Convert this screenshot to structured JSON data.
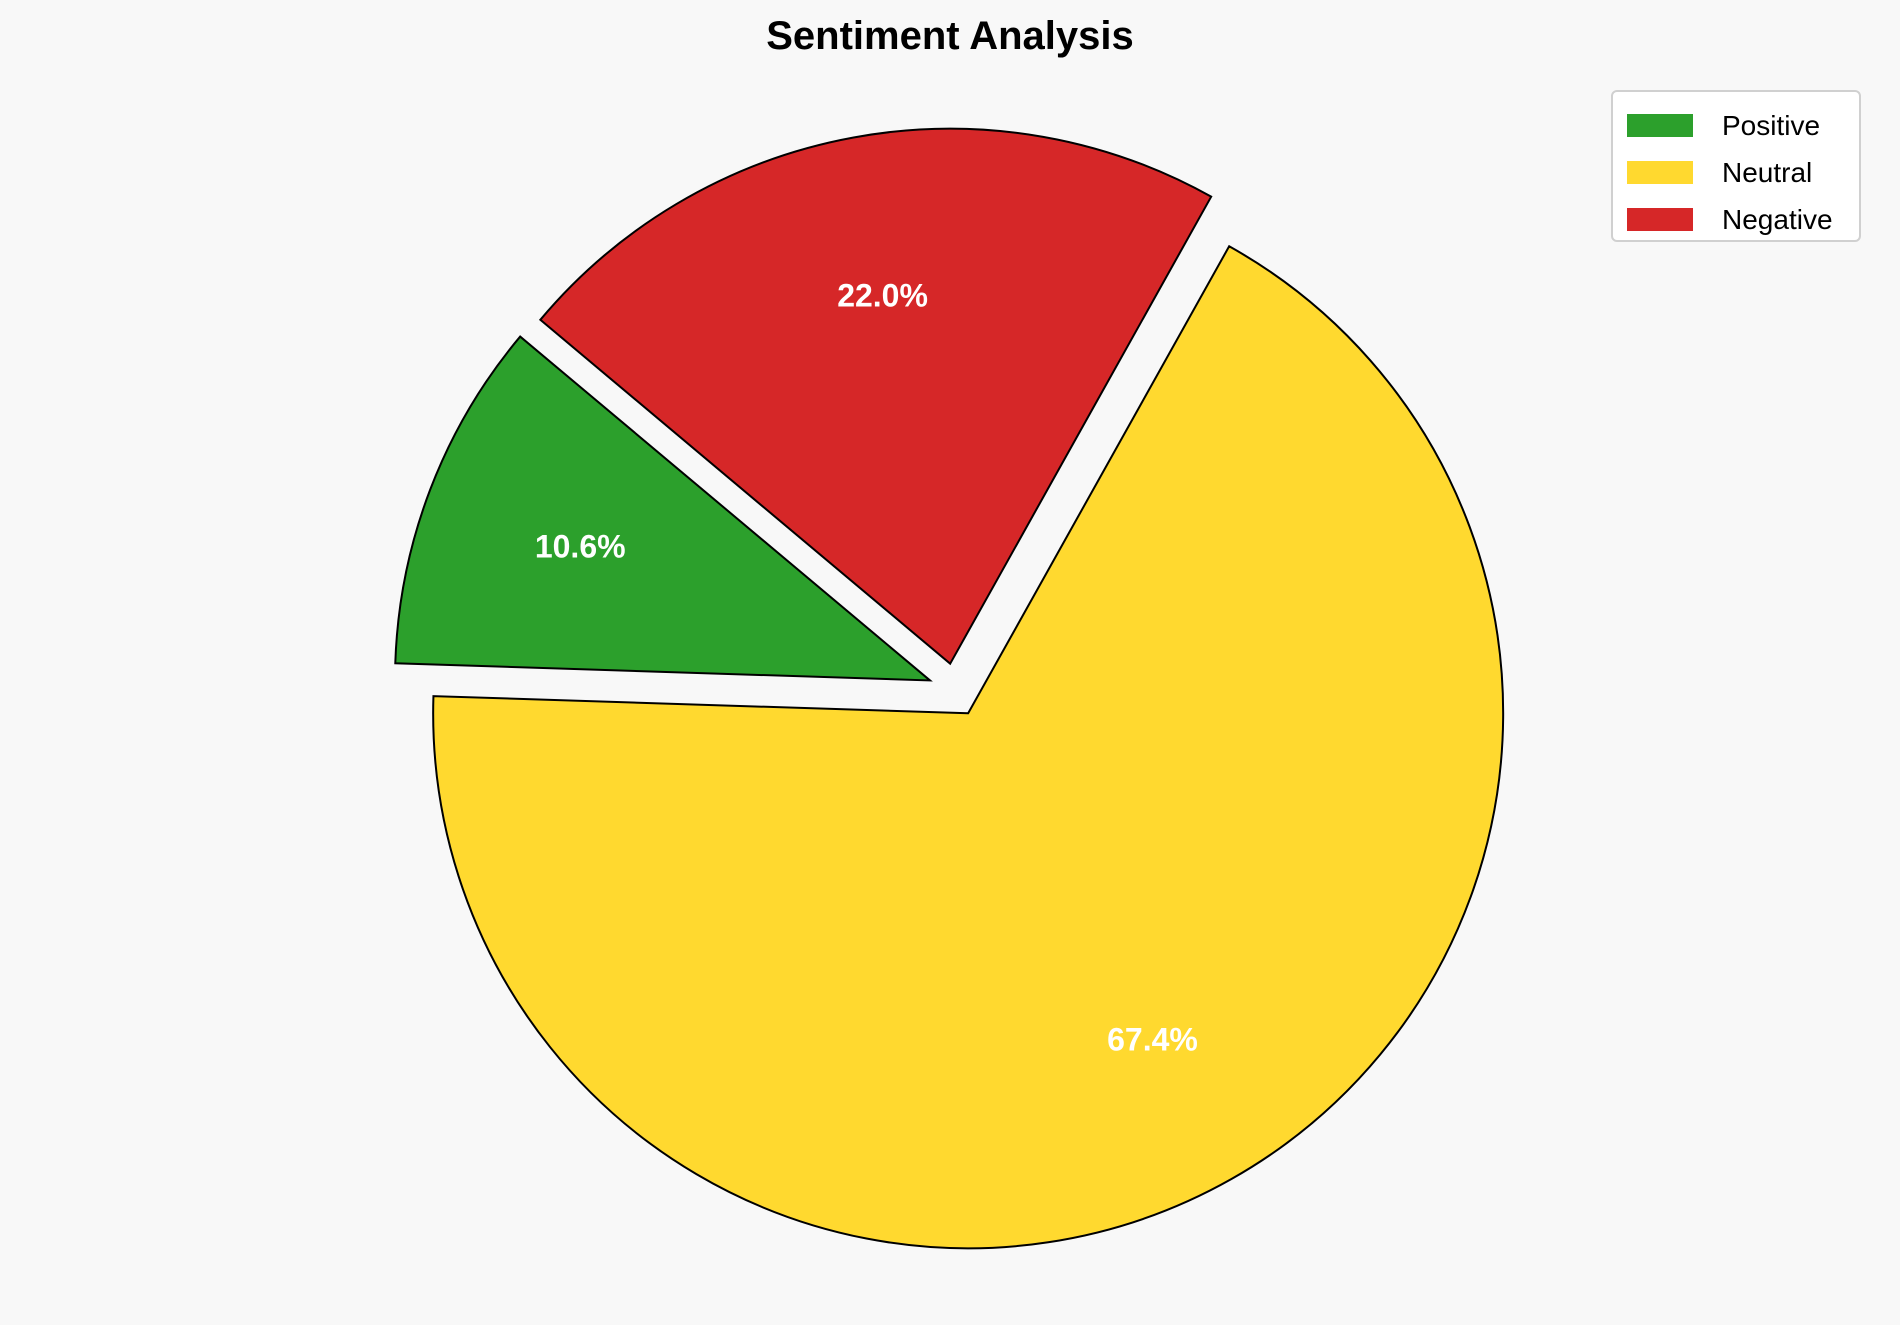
{
  "chart_data": {
    "type": "pie",
    "title": "Sentiment Analysis",
    "slices": [
      {
        "label": "Positive",
        "value": 10.6,
        "pct_label": "10.6%",
        "color": "#2ca02c"
      },
      {
        "label": "Neutral",
        "value": 67.4,
        "pct_label": "67.4%",
        "color": "#ffd92f"
      },
      {
        "label": "Negative",
        "value": 22.0,
        "pct_label": "22.0%",
        "color": "#d62728"
      }
    ],
    "start_angle_deg": 140,
    "direction": "counterclockwise",
    "explode": [
      0.05,
      0.05,
      0.05
    ],
    "edge_color": "#000000",
    "label_color": "#ffffff",
    "legend_placement": "top-right",
    "background": "#f8f8f8"
  }
}
